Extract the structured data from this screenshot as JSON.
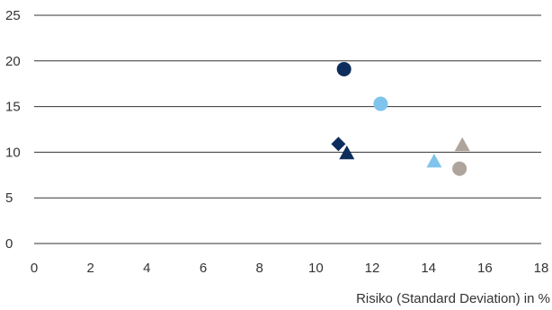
{
  "chart_data": {
    "type": "scatter",
    "title": "",
    "xlabel": "Risiko (Standard Deviation) in %",
    "ylabel": "",
    "xlim": [
      0,
      18
    ],
    "ylim": [
      0,
      25
    ],
    "x_ticks": [
      0,
      2,
      4,
      6,
      8,
      10,
      12,
      14,
      16,
      18
    ],
    "y_ticks": [
      0,
      5,
      10,
      15,
      20,
      25
    ],
    "grid": "horizontal",
    "legend": "none",
    "points": [
      {
        "x": 11.0,
        "y": 19.1,
        "shape": "circle",
        "color": "#0d2d5c"
      },
      {
        "x": 12.3,
        "y": 15.3,
        "shape": "circle",
        "color": "#7fc4ec"
      },
      {
        "x": 10.8,
        "y": 10.9,
        "shape": "diamond",
        "color": "#0d2d5c"
      },
      {
        "x": 11.1,
        "y": 9.9,
        "shape": "triangle",
        "color": "#0d2d5c"
      },
      {
        "x": 15.2,
        "y": 10.8,
        "shape": "triangle",
        "color": "#aea49b"
      },
      {
        "x": 14.2,
        "y": 9.0,
        "shape": "triangle",
        "color": "#7fc4ec"
      },
      {
        "x": 15.1,
        "y": 8.2,
        "shape": "circle",
        "color": "#aea49b"
      }
    ]
  }
}
